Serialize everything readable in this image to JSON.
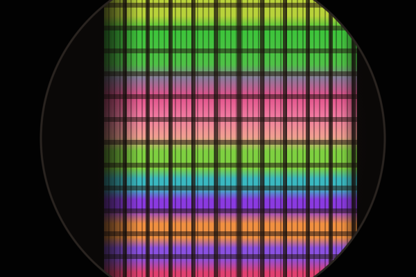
{
  "image": {
    "subject": "silicon-wafer",
    "stripe_colors": [
      "#b8d23a",
      "#3cc43a",
      "#4fc246",
      "#8a7a9a",
      "#e0508a",
      "#f07aa0",
      "#f0a090",
      "#7ed040",
      "#3ab8c0",
      "#8a3ae0",
      "#f09040",
      "#8a50e0",
      "#e04070"
    ]
  }
}
